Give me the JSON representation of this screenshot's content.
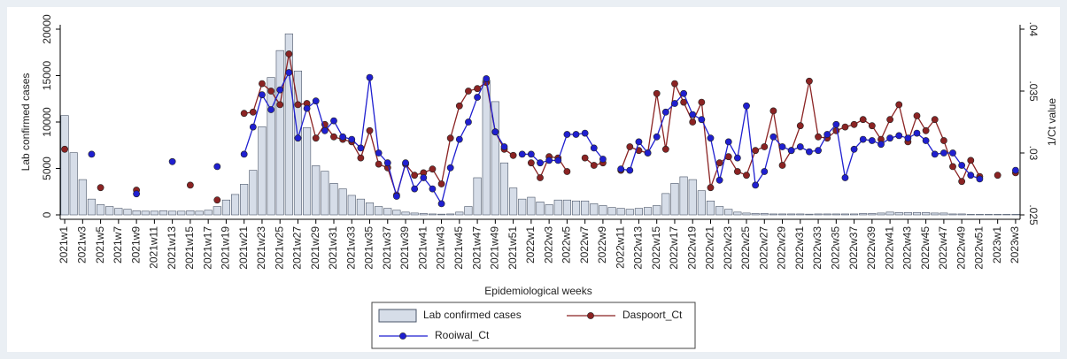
{
  "chart_data": {
    "type": "combo",
    "x_label": "Epidemiological weeks",
    "y_label": "Lab  confirmed cases",
    "y2_label": "1/Ct value",
    "categories": [
      "2021w1",
      null,
      "2021w3",
      null,
      "2021w5",
      null,
      "2021w7",
      null,
      "2021w9",
      null,
      "2021w11",
      null,
      "2021w13",
      null,
      "2021w15",
      null,
      "2021w17",
      null,
      "2021w19",
      null,
      "2021w21",
      null,
      "2021w23",
      null,
      "2021w25",
      null,
      "2021w27",
      null,
      "2021w29",
      null,
      "2021w31",
      null,
      "2021w33",
      null,
      "2021w35",
      null,
      "2021w37",
      null,
      "2021w39",
      null,
      "2021w41",
      null,
      "2021w43",
      null,
      "2021w45",
      null,
      "2021w47",
      null,
      "2021w49",
      null,
      "2021w51",
      null,
      "2022w1",
      null,
      "2022w3",
      null,
      "2022w5",
      null,
      "2022w7",
      null,
      "2022w9",
      null,
      "2022w11",
      null,
      "2022w13",
      null,
      "2022w15",
      null,
      "2022w17",
      null,
      "2022w19",
      null,
      "2022w21",
      null,
      "2022w23",
      null,
      "2022w25",
      null,
      "2022w27",
      null,
      "2022w29",
      null,
      "2022w31",
      null,
      "2022w33",
      null,
      "2022w35",
      null,
      "2022w37",
      null,
      "2022w39",
      null,
      "2022w41",
      null,
      "2022w43",
      null,
      "2022w45",
      null,
      "2022w47",
      null,
      "2022w49",
      null,
      "2022w51",
      null,
      "2023w1",
      null,
      "2023w3"
    ],
    "series": [
      {
        "name": "Lab  confirmed cases",
        "type": "bar",
        "color": "#d6dde8",
        "values": [
          10700,
          6700,
          3800,
          1700,
          1100,
          900,
          700,
          600,
          450,
          400,
          400,
          450,
          400,
          400,
          450,
          400,
          500,
          900,
          1600,
          2200,
          3300,
          4800,
          9500,
          14800,
          17700,
          19500,
          15500,
          9400,
          5300,
          4700,
          3400,
          2800,
          2100,
          1700,
          1300,
          900,
          700,
          500,
          300,
          200,
          150,
          100,
          80,
          100,
          300,
          900,
          4000,
          14500,
          12200,
          5600,
          2900,
          1700,
          1900,
          1400,
          1100,
          1600,
          1600,
          1500,
          1500,
          1200,
          1000,
          800,
          700,
          600,
          700,
          800,
          1000,
          2300,
          3400,
          4100,
          3800,
          2600,
          1500,
          900,
          600,
          300,
          200,
          150,
          150,
          100,
          100,
          100,
          100,
          80,
          100,
          100,
          100,
          100,
          100,
          150,
          150,
          200,
          300,
          250,
          250,
          250,
          250,
          200,
          200,
          100,
          100,
          50,
          50,
          50,
          50,
          50,
          50
        ]
      },
      {
        "name": "Daspoort_Ct",
        "type": "line",
        "axis": "y2",
        "color": "#8b2323",
        "values": [
          0.0303,
          null,
          null,
          null,
          0.0272,
          null,
          null,
          null,
          0.027,
          null,
          null,
          null,
          null,
          null,
          0.0274,
          null,
          null,
          0.0262,
          null,
          null,
          0.0332,
          0.0333,
          0.0356,
          0.035,
          0.0339,
          0.038,
          0.0339,
          0.034,
          0.0312,
          0.0323,
          0.0313,
          0.0311,
          0.0309,
          0.0296,
          0.0318,
          0.0291,
          0.0288,
          0.0266,
          0.0291,
          0.0282,
          0.0284,
          0.0287,
          0.0275,
          0.0312,
          0.0338,
          0.035,
          0.0352,
          0.0357,
          0.0317,
          0.0303,
          0.0298,
          null,
          0.0292,
          0.028,
          0.0297,
          0.0296,
          0.0285,
          null,
          0.0296,
          0.029,
          0.0292,
          null,
          0.0286,
          0.0305,
          0.0302,
          0.03,
          0.0348,
          0.0303,
          0.0356,
          0.0341,
          0.0325,
          0.0341,
          0.0272,
          0.0292,
          0.0297,
          0.0285,
          0.0282,
          0.0302,
          0.0305,
          0.0334,
          0.029,
          0.0302,
          0.0322,
          0.0358,
          0.0313,
          0.0312,
          0.0318,
          0.0321,
          0.0323,
          0.0327,
          0.0322,
          0.0311,
          0.0327,
          0.0339,
          0.0309,
          0.033,
          0.0318,
          0.0327,
          0.031,
          0.0289,
          0.0277,
          0.0294,
          0.0281,
          null,
          0.0282,
          null,
          0.0284
        ]
      },
      {
        "name": "Rooiwal_Ct",
        "type": "line",
        "axis": "y2",
        "color": "#1f1fd0",
        "values": [
          null,
          null,
          null,
          0.0299,
          null,
          null,
          null,
          null,
          0.0267,
          null,
          null,
          null,
          0.0293,
          null,
          null,
          null,
          null,
          0.0289,
          null,
          null,
          0.0299,
          0.0321,
          0.0347,
          0.0335,
          0.0351,
          0.0365,
          0.0312,
          0.0336,
          0.0342,
          0.0318,
          0.0326,
          0.0313,
          0.0311,
          0.0304,
          0.0361,
          0.03,
          0.0292,
          0.0265,
          0.0292,
          0.0271,
          0.028,
          0.0271,
          0.0259,
          0.0288,
          0.0311,
          0.0325,
          0.0345,
          0.036,
          0.0317,
          0.0305,
          null,
          0.0299,
          0.0299,
          0.0292,
          0.0294,
          0.0294,
          0.0315,
          0.0315,
          0.0316,
          0.0304,
          0.0295,
          null,
          0.0287,
          0.0286,
          0.0309,
          0.03,
          0.0313,
          0.0333,
          0.034,
          0.0348,
          0.0331,
          0.0327,
          0.0312,
          0.0278,
          0.0309,
          0.0296,
          0.0338,
          0.0274,
          0.0285,
          0.0313,
          0.0305,
          0.0302,
          0.0305,
          0.0301,
          0.0302,
          0.0315,
          0.0323,
          0.028,
          0.0303,
          0.0311,
          0.031,
          0.0307,
          0.0312,
          0.0314,
          0.0312,
          0.0316,
          0.031,
          0.0299,
          0.03,
          0.03,
          0.029,
          0.0282,
          0.0279,
          null,
          null,
          null,
          0.0286
        ]
      }
    ],
    "ylim": [
      0,
      20000
    ],
    "yticks": [
      0,
      5000,
      10000,
      15000,
      20000
    ],
    "y2lim": [
      0.025,
      0.04
    ],
    "y2ticks": [
      {
        "value": 0.025,
        "label": ".025"
      },
      {
        "value": 0.03,
        "label": ".03"
      },
      {
        "value": 0.035,
        "label": ".035"
      },
      {
        "value": 0.04,
        "label": ".04"
      }
    ]
  }
}
